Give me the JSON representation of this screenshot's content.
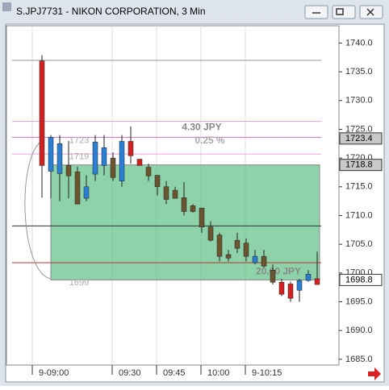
{
  "chart_data": {
    "type": "candlestick",
    "title": "S.JPJ7731 - NIKON CORPORATION, 3 Min",
    "categories": [
      "9-09:00",
      null,
      null,
      null,
      null,
      null,
      null,
      null,
      null,
      "09:30",
      null,
      null,
      null,
      null,
      "09:45",
      null,
      null,
      null,
      null,
      "10:00",
      null,
      null,
      null,
      null,
      "9-10:15",
      null,
      null,
      null,
      null,
      null,
      null,
      null
    ],
    "open": [
      1736.9,
      1717.7,
      1717.3,
      1718.7,
      1717.6,
      1713,
      1717.2,
      1718.7,
      1720,
      1716,
      1722.9,
      1719.8,
      1718.4,
      1717,
      1715,
      1714.4,
      1713.1,
      1711.7,
      1711.3,
      1708,
      1706.6,
      1703.2,
      1705.7,
      1705.2,
      1701.8,
      1702.9,
      1700.5,
      1698.4,
      1698.1,
      1697,
      1698.7,
      1699
    ],
    "high": [
      1737.9,
      1724,
      1724,
      1723,
      1718.5,
      1717,
      1724,
      1724,
      1721,
      1724,
      1725.5,
      1719.8,
      1719,
      1717,
      1716,
      1715,
      1715.8,
      1712,
      1711.3,
      1709,
      1707,
      1704,
      1707,
      1706,
      1704,
      1704,
      1701.5,
      1699,
      1698.5,
      1699,
      1700.5,
      1703.7
    ],
    "low": [
      1713.1,
      1713,
      1712.5,
      1713,
      1712,
      1712.5,
      1716,
      1717,
      1716,
      1715,
      1719,
      1718.7,
      1716,
      1713.5,
      1712,
      1713,
      1710,
      1710.5,
      1707,
      1705.5,
      1702,
      1702,
      1703.5,
      1702,
      1701.5,
      1701,
      1698,
      1696,
      1695,
      1695,
      1698.5,
      1698
    ],
    "close": [
      1718.7,
      1723.6,
      1722.5,
      1716.9,
      1712,
      1715,
      1722.8,
      1721.8,
      1716.6,
      1722.9,
      1720.4,
      1718.7,
      1716.9,
      1715,
      1712.8,
      1713,
      1710.7,
      1710.7,
      1708,
      1705.7,
      1702.9,
      1702.6,
      1704.3,
      1702.9,
      1702.9,
      1701.2,
      1698.4,
      1696.3,
      1695.6,
      1698.7,
      1699.8,
      1698
    ],
    "colors": [
      "#d42020",
      "#2a7fd4",
      "#2a7fd4",
      "#6b5530",
      "#6b5530",
      "#2a7fd4",
      "#2a7fd4",
      "#2a7fd4",
      "#6b5530",
      "#2a7fd4",
      "#d42020",
      "#d42020",
      "#6b5530",
      "#6b5530",
      "#6b5530",
      "#6b5530",
      "#6b5530",
      "#6b5530",
      "#6b5530",
      "#6b5530",
      "#6b5530",
      "#6b5530",
      "#6b5530",
      "#6b5530",
      "#2a7fd4",
      "#6b5530",
      "#6b5530",
      "#d42020",
      "#d42020",
      "#2a7fd4",
      "#2a7fd4",
      "#d42020"
    ],
    "ylim": [
      1684,
      1743
    ],
    "yticks": [
      {
        "value": 1740,
        "label": "1740.0"
      },
      {
        "value": 1735,
        "label": "1735.0"
      },
      {
        "value": 1730,
        "label": "1730.0"
      },
      {
        "value": 1725,
        "label": "1725.0"
      },
      {
        "value": 1720,
        "label": "1720.0"
      },
      {
        "value": 1715,
        "label": "1715.0"
      },
      {
        "value": 1710,
        "label": "1710.0"
      },
      {
        "value": 1705,
        "label": "1705.0"
      },
      {
        "value": 1700,
        "label": "1700.0"
      },
      {
        "value": 1695,
        "label": "1695.0"
      },
      {
        "value": 1690,
        "label": "1690.0"
      },
      {
        "value": 1685,
        "label": "1685.0"
      }
    ],
    "levels": [
      {
        "value": 1737,
        "color": "#999999"
      },
      {
        "value": 1726.4,
        "color": "#f0a0dc"
      },
      {
        "value": 1723.6,
        "color": "#d070c0"
      },
      {
        "value": 1720.7,
        "color": "#f0a0dc"
      },
      {
        "value": 1708.2,
        "color": "#333333"
      },
      {
        "value": 1701.8,
        "color": "#c03030"
      }
    ],
    "price_labels": [
      1723.4,
      1718.8,
      1698.8
    ],
    "annotations": [
      "4.30  JPY",
      "0.25 %",
      "20.00  JPY",
      "1723",
      "1719",
      "1699"
    ]
  }
}
